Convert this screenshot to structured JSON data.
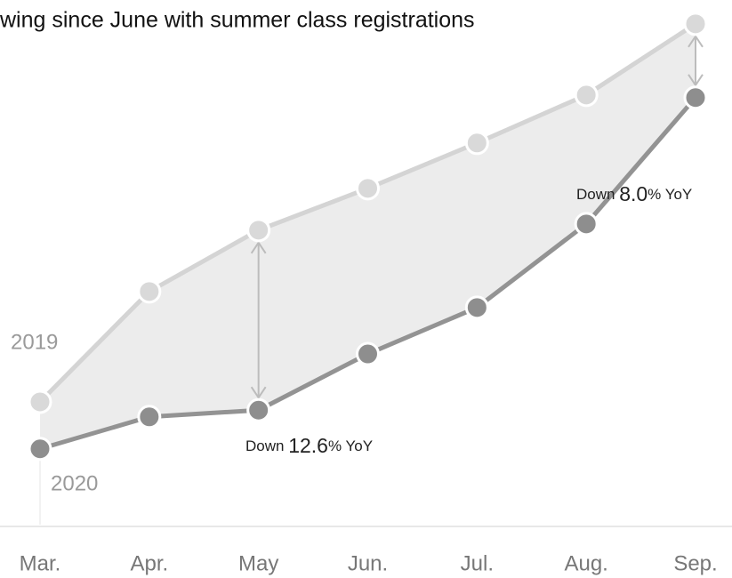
{
  "chart_data": {
    "type": "line",
    "title": "wing since June with summer class registrations",
    "categories": [
      "Mar.",
      "Apr.",
      "May",
      "Jun.",
      "Jul.",
      "Aug.",
      "Sep."
    ],
    "series": [
      {
        "name": "2019",
        "color": "#d4d4d4",
        "values": [
          23.8,
          45.2,
          57.1,
          65.2,
          74.0,
          83.3,
          97.1
        ]
      },
      {
        "name": "2020",
        "color": "#939393",
        "values": [
          14.7,
          20.9,
          22.2,
          33.1,
          42.1,
          58.3,
          82.8
        ]
      }
    ],
    "area_color": "#ececec",
    "ylim": [
      0,
      100
    ],
    "annotations": [
      {
        "prefix": "Down ",
        "value": "12.6",
        "suffix": "% YoY"
      },
      {
        "prefix": "Down ",
        "value": "8.0",
        "suffix": "% YoY"
      }
    ]
  }
}
